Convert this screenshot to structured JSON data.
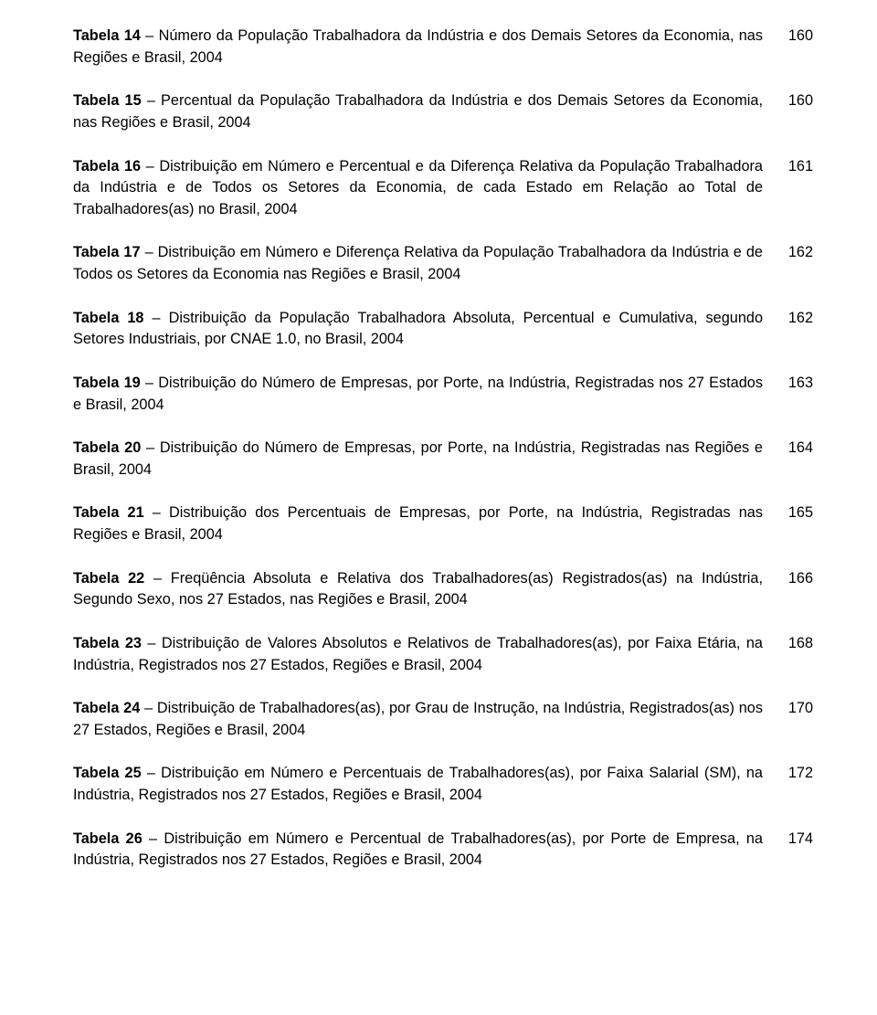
{
  "entries": [
    {
      "label": "Tabela 14",
      "desc": " – Número da População Trabalhadora da Indústria e dos Demais Setores da Economia, nas Regiões e Brasil, 2004",
      "page": "160"
    },
    {
      "label": "Tabela 15",
      "desc": " – Percentual da População Trabalhadora da Indústria e dos Demais Setores da Economia, nas Regiões e Brasil, 2004",
      "page": "160"
    },
    {
      "label": "Tabela 16",
      "desc": " – Distribuição em Número e Percentual e da Diferença Relativa da População Trabalhadora da Indústria e de Todos os Setores da Economia, de cada Estado em Relação ao Total de Trabalhadores(as) no Brasil, 2004",
      "page": "161"
    },
    {
      "label": "Tabela 17",
      "desc": " – Distribuição em Número e Diferença Relativa da População Trabalhadora da Indústria e de Todos os Setores da Economia nas Regiões e Brasil, 2004",
      "page": "162"
    },
    {
      "label": "Tabela 18",
      "desc": " – Distribuição da População Trabalhadora Absoluta, Percentual e Cumulativa, segundo Setores Industriais, por CNAE 1.0, no Brasil, 2004",
      "page": "162"
    },
    {
      "label": "Tabela 19",
      "desc": " – Distribuição do Número de Empresas, por Porte, na Indústria, Registradas nos 27 Estados e Brasil, 2004",
      "page": "163"
    },
    {
      "label": "Tabela 20",
      "desc": " – Distribuição do Número de Empresas, por Porte, na Indústria, Registradas nas Regiões e Brasil, 2004",
      "page": "164"
    },
    {
      "label": "Tabela 21",
      "desc": " – Distribuição dos Percentuais de Empresas, por Porte, na Indústria, Registradas nas Regiões e Brasil, 2004",
      "page": "165"
    },
    {
      "label": "Tabela 22",
      "desc": " – Freqüência Absoluta e Relativa dos Trabalhadores(as) Registrados(as) na Indústria, Segundo Sexo, nos 27 Estados, nas Regiões e Brasil, 2004",
      "page": "166"
    },
    {
      "label": "Tabela 23",
      "desc": " – Distribuição de Valores Absolutos e Relativos de Trabalhadores(as), por Faixa Etária, na Indústria, Registrados nos 27 Estados, Regiões e Brasil, 2004",
      "page": "168"
    },
    {
      "label": "Tabela 24",
      "desc": " – Distribuição de Trabalhadores(as), por Grau de Instrução, na Indústria, Registrados(as) nos 27 Estados, Regiões e Brasil, 2004",
      "page": "170"
    },
    {
      "label": "Tabela 25",
      "desc": " – Distribuição em Número e Percentuais de Trabalhadores(as), por Faixa Salarial (SM), na Indústria, Registrados nos 27 Estados, Regiões e Brasil, 2004",
      "page": "172"
    },
    {
      "label": "Tabela 26",
      "desc": " – Distribuição em Número e Percentual de Trabalhadores(as), por Porte de Empresa, na Indústria, Registrados nos 27 Estados, Regiões e Brasil, 2004",
      "page": "174"
    }
  ]
}
